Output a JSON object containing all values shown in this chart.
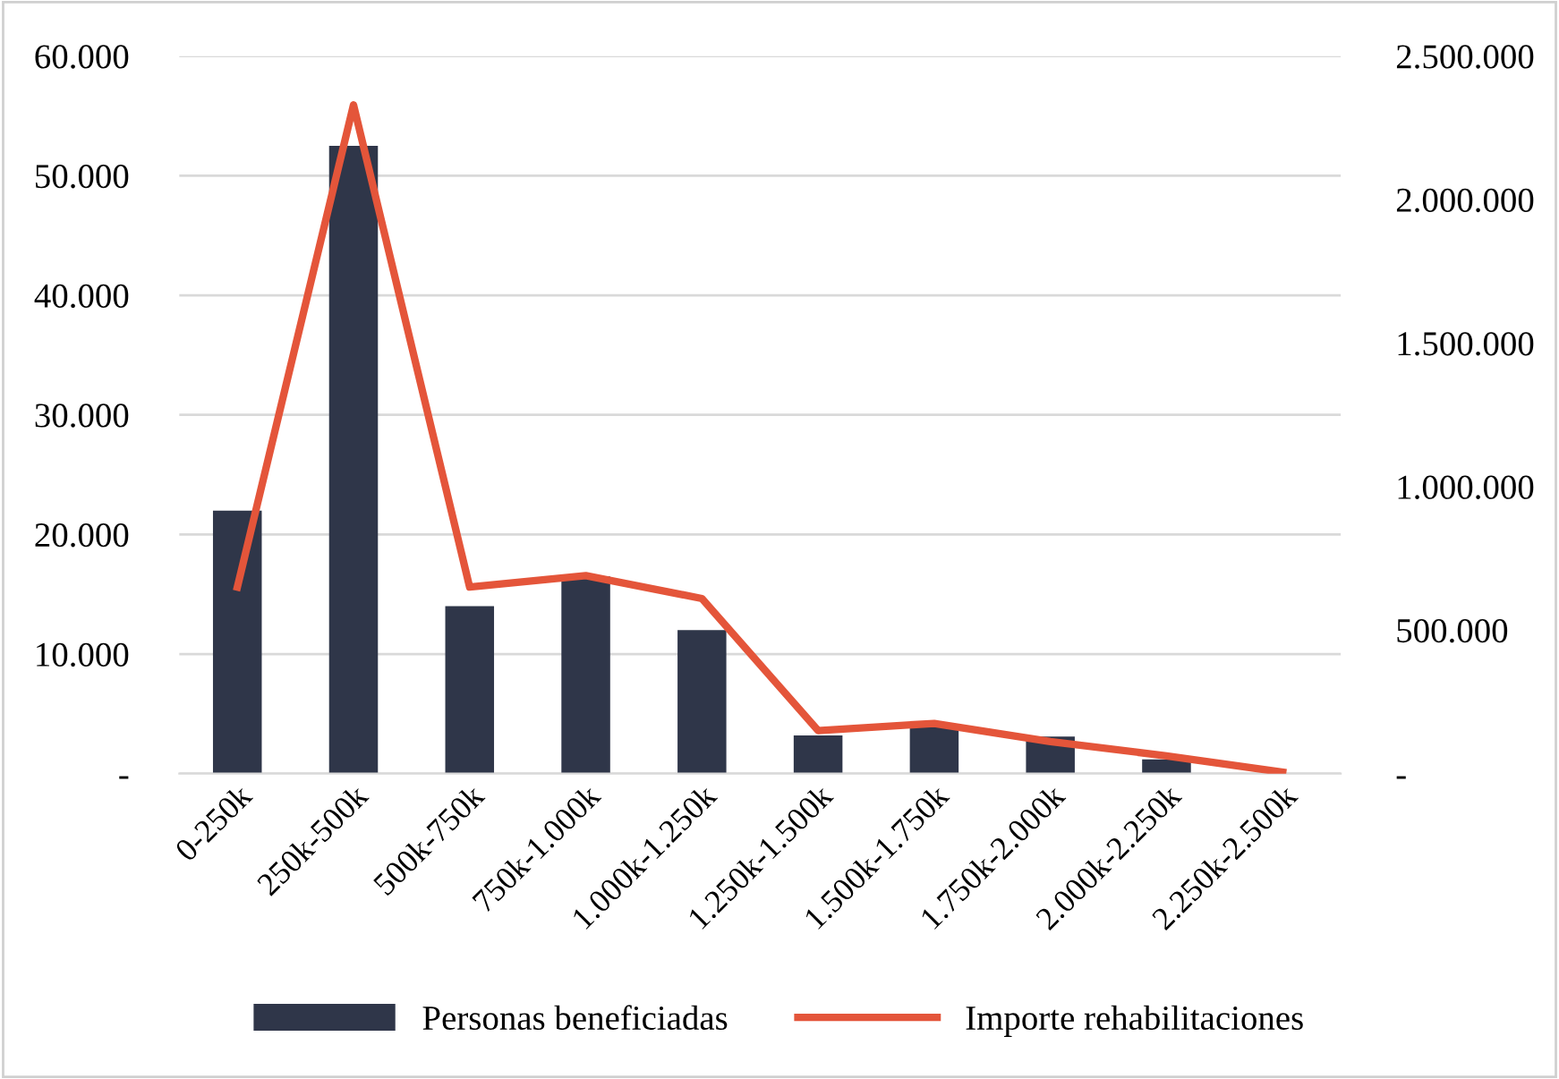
{
  "chart_data": {
    "type": "bar",
    "categories": [
      "0-250k",
      "250k-500k",
      "500k-750k",
      "750k-1.000k",
      "1.000k-1.250k",
      "1.250k-1.500k",
      "1.500k-1.750k",
      "1.750k-2.000k",
      "2.000k-2.250k",
      "2.250k-2.500k"
    ],
    "series": [
      {
        "name": "Personas beneficiadas",
        "color": "#2f3649",
        "values": [
          22000,
          52500,
          14000,
          16500,
          12000,
          3200,
          4000,
          3100,
          1200,
          null
        ]
      },
      {
        "name": "Importe rehabilitaciones",
        "color": "#e4553a",
        "type": "line",
        "axis": "y2",
        "values": [
          650000,
          2330000,
          650000,
          690000,
          610000,
          150000,
          175000,
          112000,
          62000,
          5000
        ]
      }
    ],
    "ylim": [
      0,
      60000
    ],
    "yticks": [
      {
        "value": 0,
        "label": "-"
      },
      {
        "value": 10000,
        "label": "10.000"
      },
      {
        "value": 20000,
        "label": "20.000"
      },
      {
        "value": 30000,
        "label": "30.000"
      },
      {
        "value": 40000,
        "label": "40.000"
      },
      {
        "value": 50000,
        "label": "50.000"
      },
      {
        "value": 60000,
        "label": "60.000"
      }
    ],
    "y2lim": [
      0,
      2500000
    ],
    "y2ticks": [
      {
        "value": 0,
        "label": "-"
      },
      {
        "value": 500000,
        "label": "500.000"
      },
      {
        "value": 1000000,
        "label": "1.000.000"
      },
      {
        "value": 1500000,
        "label": "1.500.000"
      },
      {
        "value": 2000000,
        "label": "2.000.000"
      },
      {
        "value": 2500000,
        "label": "2.500.000"
      }
    ],
    "grid": "y",
    "legend": "bottom",
    "marker": "none",
    "line_style": "solid"
  }
}
